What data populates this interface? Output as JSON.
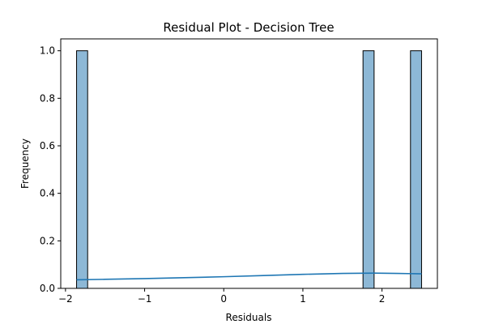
{
  "chart_data": {
    "type": "bar",
    "subtype": "histogram",
    "title": "Residual Plot - Decision Tree",
    "xlabel": "Residuals",
    "ylabel": "Frequency",
    "xlim": [
      -2.06,
      2.7
    ],
    "ylim": [
      0,
      1.05
    ],
    "xticks": [
      -2,
      -1,
      0,
      1,
      2
    ],
    "xtick_labels": [
      "−2",
      "−1",
      "0",
      "1",
      "2"
    ],
    "yticks": [
      0.0,
      0.2,
      0.4,
      0.6,
      0.8,
      1.0
    ],
    "ytick_labels": [
      "0.0",
      "0.2",
      "0.4",
      "0.6",
      "0.8",
      "1.0"
    ],
    "bars": [
      {
        "x0": -1.86,
        "x1": -1.72,
        "value": 1
      },
      {
        "x0": 1.76,
        "x1": 1.9,
        "value": 1
      },
      {
        "x0": 2.36,
        "x1": 2.5,
        "value": 1
      }
    ],
    "kde": {
      "x": [
        -1.86,
        -1.5,
        -1.0,
        -0.5,
        0.0,
        0.5,
        1.0,
        1.5,
        1.9,
        2.2,
        2.5
      ],
      "y": [
        0.036,
        0.038,
        0.041,
        0.045,
        0.049,
        0.054,
        0.059,
        0.063,
        0.064,
        0.063,
        0.061
      ]
    },
    "grid": false,
    "legend": "none",
    "colors": {
      "bar_fill": "#8db8d6",
      "bar_edge": "#000000",
      "kde_line": "#1f77b4"
    }
  }
}
